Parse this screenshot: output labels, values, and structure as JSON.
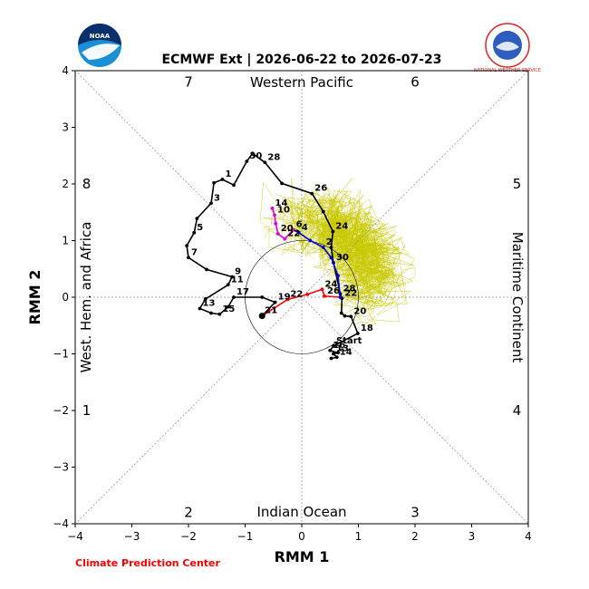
{
  "title": "ECMWF Ext | 2026-06-22 to 2026-07-23",
  "footer": "Climate Prediction Center",
  "logos": {
    "left": "NOAA",
    "right_text": "NATIONAL WEATHER SERVICE"
  },
  "colors": {
    "ensemble": "#c8c800",
    "observed": "#000000",
    "week1": "#ff0000",
    "week2": "#0000dd",
    "week3": "#dd00dd",
    "grid": "#888888"
  },
  "chart_data": {
    "type": "line",
    "title": "ECMWF Ext | 2026-06-22 to 2026-07-23",
    "xlabel": "RMM 1",
    "ylabel": "RMM 2",
    "xlim": [
      -4,
      4
    ],
    "ylim": [
      -4,
      4
    ],
    "xticks": [
      "−4",
      "−3",
      "−2",
      "−1",
      "0",
      "1",
      "2",
      "3",
      "4"
    ],
    "yticks": [
      "−4",
      "−3",
      "−2",
      "−1",
      "0",
      "1",
      "2",
      "3",
      "4"
    ],
    "unit_circle_radius": 1,
    "region_labels": {
      "top": "Western Pacific",
      "bottom": "Indian Ocean",
      "left": "West. Hem. and Africa",
      "right": "Maritime Continent"
    },
    "phase_numbers": [
      {
        "label": "1",
        "x": -3.8,
        "y": -2.0
      },
      {
        "label": "2",
        "x": -2.0,
        "y": -3.8
      },
      {
        "label": "3",
        "x": 2.0,
        "y": -3.8
      },
      {
        "label": "4",
        "x": 3.8,
        "y": -2.0
      },
      {
        "label": "5",
        "x": 3.8,
        "y": 2.0
      },
      {
        "label": "6",
        "x": 2.0,
        "y": 3.8
      },
      {
        "label": "7",
        "x": -2.0,
        "y": 3.8
      },
      {
        "label": "8",
        "x": -3.8,
        "y": 2.0
      }
    ],
    "series": [
      {
        "id": "observed",
        "points": [
          {
            "x": 0.52,
            "y": -1.08,
            "label": ""
          },
          {
            "x": 0.62,
            "y": -1.06,
            "label": "14"
          },
          {
            "x": 0.56,
            "y": -1.0,
            "label": "13"
          },
          {
            "x": 0.64,
            "y": -0.98,
            "label": ""
          },
          {
            "x": 0.5,
            "y": -0.94,
            "label": "16"
          },
          {
            "x": 0.56,
            "y": -0.86,
            "label": "Start"
          },
          {
            "x": 0.99,
            "y": -0.64,
            "label": "18"
          },
          {
            "x": 0.87,
            "y": -0.34,
            "label": "20"
          },
          {
            "x": 0.76,
            "y": -0.33,
            "label": ""
          },
          {
            "x": 0.7,
            "y": -0.28,
            "label": ""
          },
          {
            "x": 0.71,
            "y": -0.02,
            "label": "22"
          },
          {
            "x": 0.68,
            "y": 0.06,
            "label": "28"
          },
          {
            "x": 0.56,
            "y": 0.61,
            "label": "30"
          },
          {
            "x": 0.52,
            "y": 0.88,
            "label": ""
          },
          {
            "x": 0.55,
            "y": 1.16,
            "label": "24"
          },
          {
            "x": 0.38,
            "y": 1.51,
            "label": ""
          },
          {
            "x": 0.18,
            "y": 1.83,
            "label": "26"
          },
          {
            "x": -0.35,
            "y": 2.01,
            "label": ""
          },
          {
            "x": -0.65,
            "y": 2.38,
            "label": "28"
          },
          {
            "x": -0.87,
            "y": 2.54,
            "label": ""
          },
          {
            "x": -0.97,
            "y": 2.4,
            "label": "30"
          },
          {
            "x": -1.2,
            "y": 1.98,
            "label": ""
          },
          {
            "x": -1.4,
            "y": 2.08,
            "label": "1"
          },
          {
            "x": -1.55,
            "y": 2.02,
            "label": ""
          },
          {
            "x": -1.6,
            "y": 1.66,
            "label": "3"
          },
          {
            "x": -1.85,
            "y": 1.39,
            "label": ""
          },
          {
            "x": -1.9,
            "y": 1.14,
            "label": "5"
          },
          {
            "x": -2.03,
            "y": 0.91,
            "label": ""
          },
          {
            "x": -2.0,
            "y": 0.7,
            "label": "7"
          },
          {
            "x": -1.68,
            "y": 0.49,
            "label": ""
          },
          {
            "x": -1.23,
            "y": 0.36,
            "label": "9"
          },
          {
            "x": -1.3,
            "y": 0.22,
            "label": "11"
          },
          {
            "x": -1.7,
            "y": -0.03,
            "label": ""
          },
          {
            "x": -1.8,
            "y": -0.2,
            "label": "13"
          },
          {
            "x": -1.6,
            "y": -0.28,
            "label": ""
          },
          {
            "x": -1.45,
            "y": -0.3,
            "label": "15"
          },
          {
            "x": -1.3,
            "y": -0.17,
            "label": ""
          },
          {
            "x": -1.2,
            "y": 0.0,
            "label": "17"
          },
          {
            "x": -0.7,
            "y": 0.0,
            "label": ""
          },
          {
            "x": -0.47,
            "y": -0.09,
            "label": "19"
          },
          {
            "x": -0.7,
            "y": -0.33,
            "label": "21"
          }
        ]
      },
      {
        "id": "week1",
        "points": [
          {
            "x": -0.7,
            "y": -0.33,
            "label": ""
          },
          {
            "x": -0.25,
            "y": -0.04,
            "label": "22"
          },
          {
            "x": 0.1,
            "y": 0.05,
            "label": ""
          },
          {
            "x": 0.36,
            "y": 0.14,
            "label": "24"
          },
          {
            "x": 0.4,
            "y": 0.02,
            "label": "26"
          },
          {
            "x": 0.68,
            "y": 0.0,
            "label": ""
          }
        ]
      },
      {
        "id": "week2",
        "points": [
          {
            "x": 0.68,
            "y": 0.0,
            "label": ""
          },
          {
            "x": 0.64,
            "y": 0.38,
            "label": ""
          },
          {
            "x": 0.52,
            "y": 0.7,
            "label": ""
          },
          {
            "x": 0.38,
            "y": 0.88,
            "label": "2"
          },
          {
            "x": 0.15,
            "y": 1.0,
            "label": ""
          },
          {
            "x": -0.05,
            "y": 1.14,
            "label": "4"
          },
          {
            "x": -0.15,
            "y": 1.19,
            "label": "6"
          }
        ]
      },
      {
        "id": "week3",
        "points": [
          {
            "x": -0.15,
            "y": 1.19,
            "label": ""
          },
          {
            "x": -0.3,
            "y": 1.03,
            "label": "22"
          },
          {
            "x": -0.42,
            "y": 1.12,
            "label": "20"
          },
          {
            "x": -0.46,
            "y": 1.3,
            "label": ""
          },
          {
            "x": -0.48,
            "y": 1.45,
            "label": "10"
          },
          {
            "x": -0.52,
            "y": 1.57,
            "label": "14"
          }
        ]
      }
    ]
  }
}
